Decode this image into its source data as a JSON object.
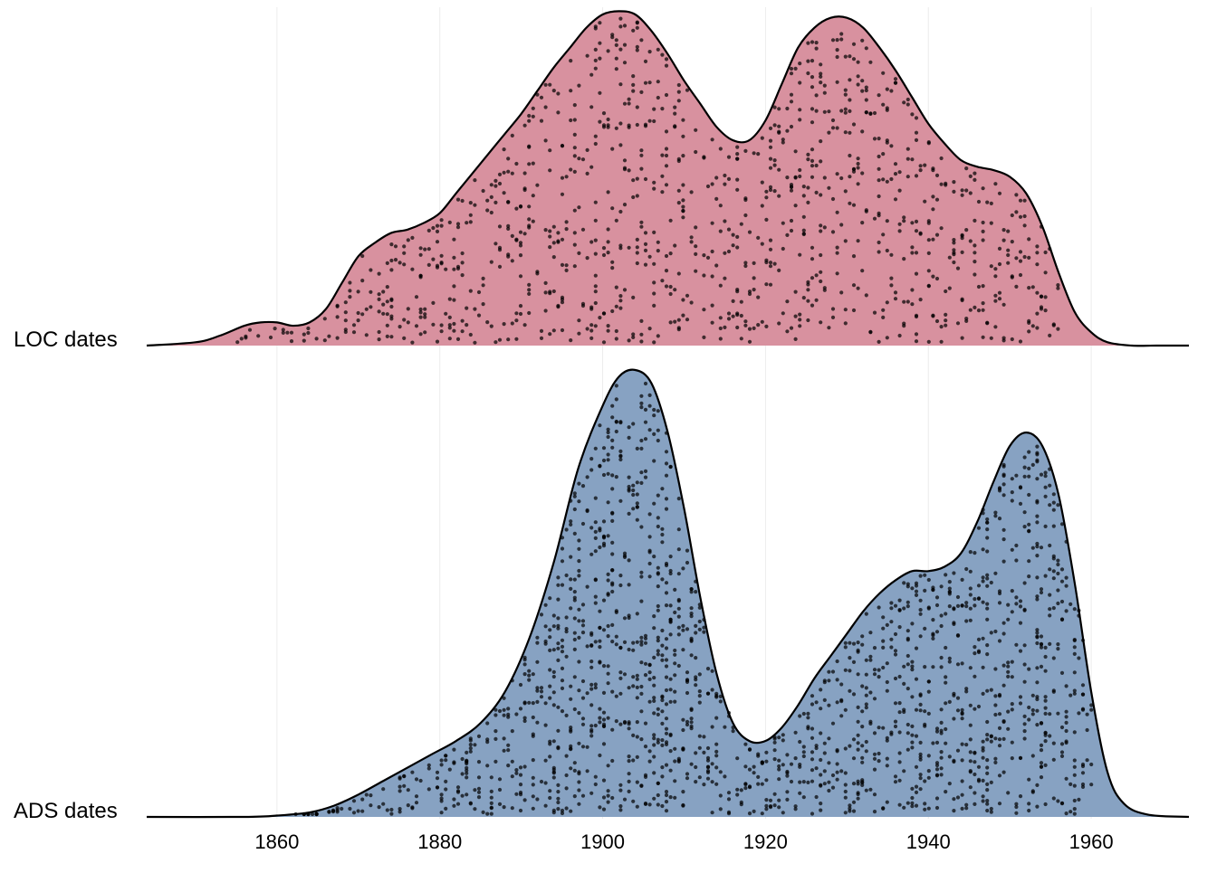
{
  "chart_data": {
    "type": "area",
    "subtype": "ridgeline density with jittered points",
    "title": "",
    "xlabel": "",
    "ylabel": "",
    "xlim": [
      1844,
      1972
    ],
    "x_ticks": [
      "1860",
      "1880",
      "1900",
      "1920",
      "1940",
      "1960"
    ],
    "grid": "vertical lines at ticks, faint",
    "legend": "none",
    "series": [
      {
        "name": "LOC dates",
        "color": "#d8919f",
        "x": [
          1844,
          1850,
          1853,
          1856,
          1858,
          1860,
          1862,
          1864,
          1866,
          1868,
          1870,
          1872,
          1874,
          1876,
          1878,
          1880,
          1882,
          1884,
          1886,
          1888,
          1890,
          1892,
          1894,
          1896,
          1898,
          1900,
          1902,
          1904,
          1906,
          1908,
          1910,
          1912,
          1914,
          1916,
          1918,
          1920,
          1922,
          1924,
          1926,
          1928,
          1930,
          1932,
          1934,
          1936,
          1938,
          1940,
          1942,
          1944,
          1946,
          1948,
          1950,
          1952,
          1954,
          1956,
          1958,
          1960,
          1962,
          1965,
          1968,
          1972
        ],
        "density": [
          0.0,
          0.01,
          0.03,
          0.06,
          0.07,
          0.07,
          0.06,
          0.07,
          0.11,
          0.19,
          0.27,
          0.31,
          0.34,
          0.35,
          0.37,
          0.4,
          0.46,
          0.52,
          0.58,
          0.64,
          0.7,
          0.77,
          0.84,
          0.9,
          0.96,
          1.0,
          1.01,
          1.0,
          0.95,
          0.88,
          0.8,
          0.73,
          0.66,
          0.62,
          0.62,
          0.68,
          0.79,
          0.9,
          0.96,
          0.99,
          0.99,
          0.96,
          0.9,
          0.83,
          0.75,
          0.67,
          0.61,
          0.56,
          0.54,
          0.53,
          0.51,
          0.46,
          0.36,
          0.22,
          0.1,
          0.04,
          0.01,
          0.0,
          0.0,
          0.0
        ],
        "points_range": [
          1855,
          1956
        ]
      },
      {
        "name": "ADS dates",
        "color": "#87a2c2",
        "x": [
          1844,
          1856,
          1860,
          1864,
          1867,
          1870,
          1873,
          1876,
          1879,
          1882,
          1885,
          1888,
          1891,
          1894,
          1897,
          1900,
          1902,
          1904,
          1906,
          1908,
          1910,
          1912,
          1914,
          1916,
          1918,
          1920,
          1922,
          1924,
          1926,
          1928,
          1930,
          1932,
          1934,
          1936,
          1938,
          1940,
          1942,
          1944,
          1946,
          1948,
          1950,
          1952,
          1954,
          1956,
          1958,
          1960,
          1962,
          1964,
          1967,
          1972
        ],
        "density": [
          0.0,
          0.0,
          0.003,
          0.01,
          0.025,
          0.05,
          0.08,
          0.11,
          0.14,
          0.17,
          0.21,
          0.28,
          0.4,
          0.57,
          0.78,
          0.92,
          0.985,
          1.0,
          0.97,
          0.86,
          0.69,
          0.49,
          0.32,
          0.21,
          0.17,
          0.17,
          0.2,
          0.25,
          0.31,
          0.36,
          0.41,
          0.46,
          0.5,
          0.53,
          0.55,
          0.55,
          0.56,
          0.59,
          0.66,
          0.75,
          0.83,
          0.86,
          0.83,
          0.72,
          0.52,
          0.28,
          0.1,
          0.03,
          0.005,
          0.0
        ],
        "points_range": [
          1862,
          1960
        ]
      }
    ]
  }
}
